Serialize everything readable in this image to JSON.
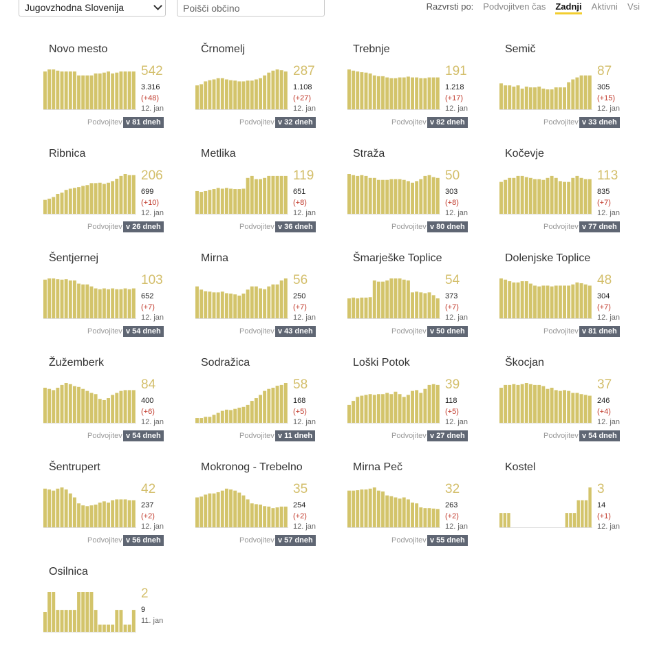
{
  "region_select": {
    "value": "Jugovzhodna Slovenija"
  },
  "search": {
    "placeholder": "Poišči občino"
  },
  "sort": {
    "label": "Razvrsti po:",
    "options": [
      "Podvojitven čas",
      "Zadnji",
      "Aktivni",
      "Vsi"
    ],
    "active": "Zadnji"
  },
  "colors": {
    "bar": "#d3c46b",
    "delta": "#c0392b",
    "badge": "#5f6673",
    "accent": "#f2cd2f"
  },
  "cards": [
    {
      "name": "Novo mesto",
      "active": "542",
      "total": "3.316",
      "delta": "(+48)",
      "date": "12. jan",
      "doubling_label": "Podvojitev",
      "doubling": "v 81 dneh",
      "bars": [
        0.95,
        1,
        1,
        0.97,
        0.95,
        0.95,
        0.95,
        0.95,
        0.85,
        0.85,
        0.85,
        0.85,
        0.9,
        0.9,
        0.92,
        0.95,
        0.9,
        0.92,
        0.95,
        0.95,
        0.95,
        0.95
      ]
    },
    {
      "name": "Črnomelj",
      "active": "287",
      "total": "1.108",
      "delta": "(+27)",
      "date": "12. jan",
      "doubling_label": "Podvojitev",
      "doubling": "v 32 dneh",
      "bars": [
        0.6,
        0.63,
        0.7,
        0.73,
        0.75,
        0.78,
        0.78,
        0.75,
        0.73,
        0.72,
        0.7,
        0.7,
        0.72,
        0.72,
        0.75,
        0.78,
        0.85,
        0.92,
        0.97,
        1,
        0.98,
        0.95
      ]
    },
    {
      "name": "Trebnje",
      "active": "191",
      "total": "1.218",
      "delta": "(+17)",
      "date": "12. jan",
      "doubling_label": "Podvojitev",
      "doubling": "v 82 dneh",
      "bars": [
        1,
        0.97,
        0.95,
        0.93,
        0.92,
        0.9,
        0.85,
        0.83,
        0.83,
        0.8,
        0.78,
        0.78,
        0.8,
        0.8,
        0.82,
        0.8,
        0.8,
        0.78,
        0.78,
        0.8,
        0.8,
        0.8
      ]
    },
    {
      "name": "Semič",
      "active": "87",
      "total": "305",
      "delta": "(+15)",
      "date": "12. jan",
      "doubling_label": "Podvojitev",
      "doubling": "v 33 dneh",
      "bars": [
        0.65,
        0.6,
        0.6,
        0.57,
        0.6,
        0.52,
        0.57,
        0.55,
        0.55,
        0.57,
        0.52,
        0.5,
        0.5,
        0.55,
        0.55,
        0.55,
        0.68,
        0.75,
        0.8,
        0.85,
        0.85,
        0.85
      ]
    },
    {
      "name": "Ribnica",
      "active": "206",
      "total": "699",
      "delta": "(+10)",
      "date": "12. jan",
      "doubling_label": "Podvojitev",
      "doubling": "v 26 dneh",
      "bars": [
        0.35,
        0.38,
        0.42,
        0.5,
        0.53,
        0.6,
        0.63,
        0.65,
        0.67,
        0.7,
        0.72,
        0.77,
        0.77,
        0.78,
        0.75,
        0.78,
        0.82,
        0.88,
        0.95,
        1,
        0.97,
        0.97
      ]
    },
    {
      "name": "Metlika",
      "active": "119",
      "total": "651",
      "delta": "(+8)",
      "date": "12. jan",
      "doubling_label": "Podvojitev",
      "doubling": "v 36 dneh",
      "bars": [
        0.57,
        0.55,
        0.57,
        0.6,
        0.62,
        0.65,
        0.63,
        0.65,
        0.63,
        0.62,
        0.62,
        0.63,
        0.9,
        0.95,
        0.87,
        0.87,
        0.9,
        0.95,
        0.95,
        0.95,
        0.95,
        0.95
      ]
    },
    {
      "name": "Straža",
      "active": "50",
      "total": "303",
      "delta": "(+8)",
      "date": "12. jan",
      "doubling_label": "Podvojitev",
      "doubling": "v 80 dneh",
      "bars": [
        1,
        0.97,
        0.95,
        0.97,
        0.95,
        0.9,
        0.9,
        0.85,
        0.85,
        0.85,
        0.87,
        0.87,
        0.87,
        0.85,
        0.82,
        0.78,
        0.82,
        0.87,
        0.95,
        0.97,
        0.92,
        0.9
      ]
    },
    {
      "name": "Kočevje",
      "active": "113",
      "total": "835",
      "delta": "(+7)",
      "date": "12. jan",
      "doubling_label": "Podvojitev",
      "doubling": "v 77 dneh",
      "bars": [
        0.8,
        0.85,
        0.9,
        0.9,
        0.95,
        0.95,
        0.92,
        0.9,
        0.87,
        0.87,
        0.85,
        0.9,
        0.95,
        0.9,
        0.82,
        0.8,
        0.8,
        0.9,
        0.95,
        0.9,
        0.87,
        0.87
      ]
    },
    {
      "name": "Šentjernej",
      "active": "103",
      "total": "652",
      "delta": "(+7)",
      "date": "12. jan",
      "doubling_label": "Podvojitev",
      "doubling": "v 54 dneh",
      "bars": [
        0.97,
        1,
        1,
        0.98,
        0.97,
        0.98,
        0.95,
        0.95,
        0.87,
        0.85,
        0.85,
        0.8,
        0.75,
        0.73,
        0.75,
        0.73,
        0.75,
        0.73,
        0.73,
        0.75,
        0.73,
        0.75
      ]
    },
    {
      "name": "Mirna",
      "active": "56",
      "total": "250",
      "delta": "(+7)",
      "date": "12. jan",
      "doubling_label": "Podvojitev",
      "doubling": "v 43 dneh",
      "bars": [
        0.8,
        0.72,
        0.68,
        0.67,
        0.65,
        0.65,
        0.67,
        0.63,
        0.62,
        0.6,
        0.57,
        0.62,
        0.72,
        0.8,
        0.8,
        0.75,
        0.73,
        0.8,
        0.85,
        0.85,
        0.95,
        1
      ]
    },
    {
      "name": "Šmarješke Toplice",
      "active": "54",
      "total": "373",
      "delta": "(+7)",
      "date": "12. jan",
      "doubling_label": "Podvojitev",
      "doubling": "v 50 dneh",
      "bars": [
        0.5,
        0.52,
        0.5,
        0.52,
        0.52,
        0.53,
        0.95,
        0.92,
        0.92,
        0.95,
        1,
        1,
        1,
        0.97,
        0.95,
        0.65,
        0.67,
        0.65,
        0.63,
        0.65,
        0.58,
        0.5
      ]
    },
    {
      "name": "Dolenjske Toplice",
      "active": "48",
      "total": "304",
      "delta": "(+7)",
      "date": "12. jan",
      "doubling_label": "Podvojitev",
      "doubling": "v 81 dneh",
      "bars": [
        1,
        0.97,
        0.93,
        0.9,
        0.9,
        0.93,
        0.93,
        0.87,
        0.82,
        0.8,
        0.82,
        0.82,
        0.8,
        0.82,
        0.82,
        0.82,
        0.82,
        0.85,
        0.9,
        0.88,
        0.85,
        0.82
      ]
    },
    {
      "name": "Žužemberk",
      "active": "84",
      "total": "400",
      "delta": "(+6)",
      "date": "12. jan",
      "doubling_label": "Podvojitev",
      "doubling": "v 54 dneh",
      "bars": [
        0.88,
        0.85,
        0.82,
        0.88,
        0.95,
        1,
        0.97,
        0.92,
        0.9,
        0.85,
        0.8,
        0.75,
        0.72,
        0.6,
        0.57,
        0.62,
        0.7,
        0.75,
        0.8,
        0.82,
        0.82,
        0.82
      ]
    },
    {
      "name": "Sodražica",
      "active": "58",
      "total": "168",
      "delta": "(+5)",
      "date": "12. jan",
      "doubling_label": "Podvojitev",
      "doubling": "v 11 dneh",
      "bars": [
        0.12,
        0.12,
        0.15,
        0.15,
        0.2,
        0.25,
        0.3,
        0.33,
        0.32,
        0.35,
        0.38,
        0.4,
        0.45,
        0.55,
        0.62,
        0.7,
        0.8,
        0.85,
        0.88,
        0.93,
        0.95,
        1
      ]
    },
    {
      "name": "Loški Potok",
      "active": "39",
      "total": "118",
      "delta": "(+5)",
      "date": "12. jan",
      "doubling_label": "Podvojitev",
      "doubling": "v 27 dneh",
      "bars": [
        0.45,
        0.55,
        0.65,
        0.68,
        0.7,
        0.72,
        0.7,
        0.72,
        0.72,
        0.75,
        0.72,
        0.78,
        0.72,
        0.65,
        0.7,
        0.8,
        0.82,
        0.75,
        0.85,
        0.95,
        0.97,
        0.95
      ]
    },
    {
      "name": "Škocjan",
      "active": "37",
      "total": "246",
      "delta": "(+4)",
      "date": "12. jan",
      "doubling_label": "Podvojitev",
      "doubling": "v 54 dneh",
      "bars": [
        0.88,
        0.95,
        0.95,
        0.97,
        0.95,
        0.97,
        1,
        0.97,
        0.95,
        0.95,
        0.92,
        0.85,
        0.88,
        0.82,
        0.8,
        0.82,
        0.8,
        0.75,
        0.75,
        0.72,
        0.7,
        0.68
      ]
    },
    {
      "name": "Šentrupert",
      "active": "42",
      "total": "237",
      "delta": "(+2)",
      "date": "12. jan",
      "doubling_label": "Podvojitev",
      "doubling": "v 56 dneh",
      "bars": [
        0.97,
        0.95,
        0.92,
        0.97,
        1,
        0.95,
        0.85,
        0.75,
        0.6,
        0.55,
        0.53,
        0.55,
        0.57,
        0.62,
        0.65,
        0.62,
        0.68,
        0.7,
        0.7,
        0.7,
        0.68,
        0.68
      ]
    },
    {
      "name": "Mokronog - Trebelno",
      "active": "35",
      "total": "254",
      "delta": "(+2)",
      "date": "12. jan",
      "doubling_label": "Podvojitev",
      "doubling": "v 57 dneh",
      "bars": [
        0.75,
        0.77,
        0.82,
        0.85,
        0.85,
        0.88,
        0.92,
        0.97,
        0.95,
        0.92,
        0.87,
        0.8,
        0.7,
        0.6,
        0.58,
        0.57,
        0.53,
        0.52,
        0.48,
        0.5,
        0.52,
        0.52
      ]
    },
    {
      "name": "Mirna Peč",
      "active": "32",
      "total": "263",
      "delta": "(+2)",
      "date": "12. jan",
      "doubling_label": "Podvojitev",
      "doubling": "v 55 dneh",
      "bars": [
        0.92,
        0.92,
        0.93,
        0.95,
        0.95,
        0.97,
        1,
        0.92,
        0.9,
        0.8,
        0.78,
        0.75,
        0.72,
        0.75,
        0.7,
        0.62,
        0.6,
        0.5,
        0.48,
        0.48,
        0.47,
        0.46
      ]
    },
    {
      "name": "Kostel",
      "active": "3",
      "total": "14",
      "delta": "(+1)",
      "date": "12. jan",
      "bars": [
        0.36,
        0.36,
        0.36,
        0,
        0,
        0,
        0,
        0,
        0,
        0,
        0,
        0,
        0,
        0,
        0,
        0,
        0,
        0.36,
        0.36,
        0.36,
        0.68,
        0.68,
        0.68,
        1
      ]
    },
    {
      "name": "Osilnica",
      "active": "2",
      "total": "9",
      "date": "11. jan",
      "bars": [
        0.5,
        1,
        1,
        0.55,
        0.55,
        0.55,
        0.55,
        0.55,
        1,
        1,
        1,
        1,
        0.55,
        0.18,
        0.18,
        0.18,
        0.18,
        0.55,
        0.55,
        0.18,
        0.18,
        0.55
      ]
    }
  ]
}
